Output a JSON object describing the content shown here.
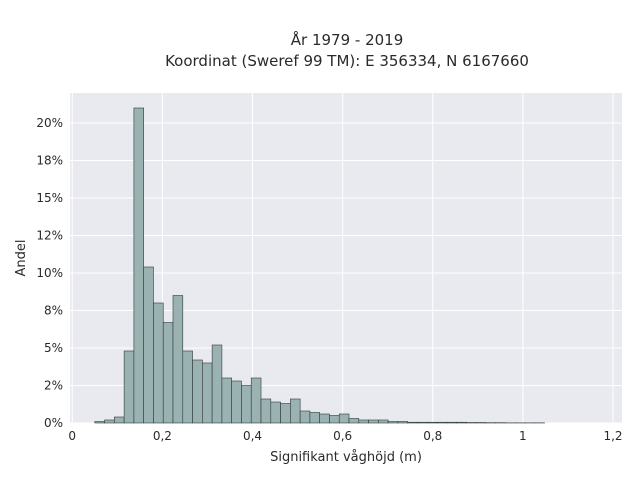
{
  "chart_data": {
    "type": "bar",
    "title_lines": [
      "År 1979 - 2019",
      "Koordinat (Sweref 99 TM): E 356334, N 6167660"
    ],
    "xlabel": "Signifikant våghöjd (m)",
    "ylabel": "Andel",
    "xlim": [
      -0.005,
      1.22
    ],
    "ylim": [
      0,
      0.22
    ],
    "x_ticks": [
      0,
      0.2,
      0.4,
      0.6,
      0.8,
      1,
      1.2
    ],
    "x_tick_labels": [
      "0",
      "0,2",
      "0,4",
      "0,6",
      "0,8",
      "1",
      "1,2"
    ],
    "y_ticks": [
      0,
      0.025,
      0.05,
      0.075,
      0.1,
      0.125,
      0.15,
      0.175,
      0.2
    ],
    "y_tick_labels": [
      "0%",
      "2%",
      "5%",
      "8%",
      "10%",
      "12%",
      "15%",
      "18%",
      "20%"
    ],
    "bin_width": 0.0217,
    "bin_start": 0.05,
    "values": [
      0.001,
      0.002,
      0.004,
      0.048,
      0.21,
      0.104,
      0.08,
      0.067,
      0.085,
      0.048,
      0.042,
      0.04,
      0.052,
      0.03,
      0.028,
      0.025,
      0.03,
      0.016,
      0.014,
      0.013,
      0.016,
      0.008,
      0.007,
      0.006,
      0.005,
      0.006,
      0.003,
      0.002,
      0.002,
      0.002,
      0.001,
      0.001,
      0.0005,
      0.0005,
      0.0005,
      0.0005,
      0.0005,
      0.0005,
      0.0003,
      0.0003,
      0.0002,
      0.0002,
      0.0001,
      0.0001,
      0.0001,
      0.0001
    ],
    "bar_color": "#9ab3b2",
    "bar_edge_color": "#2f3a3a",
    "background_color": "#e9e9f0",
    "grid": true
  }
}
